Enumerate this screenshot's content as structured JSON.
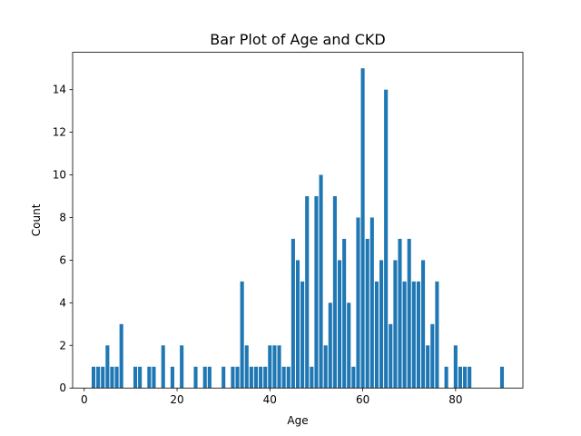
{
  "chart_data": {
    "type": "bar",
    "title": "Bar Plot of Age and CKD",
    "xlabel": "Age",
    "ylabel": "Count",
    "xlim": [
      -2.5,
      94.5
    ],
    "ylim": [
      0,
      15.75
    ],
    "xticks": [
      0,
      20,
      40,
      60,
      80
    ],
    "yticks": [
      0,
      2,
      4,
      6,
      8,
      10,
      12,
      14
    ],
    "grid": false,
    "bar_color": "#1f77b4",
    "x": [
      2,
      3,
      4,
      5,
      6,
      7,
      8,
      11,
      12,
      14,
      15,
      17,
      19,
      21,
      24,
      26,
      27,
      30,
      32,
      33,
      34,
      35,
      36,
      37,
      38,
      39,
      40,
      41,
      42,
      43,
      44,
      45,
      46,
      47,
      48,
      49,
      50,
      51,
      52,
      53,
      54,
      55,
      56,
      57,
      58,
      59,
      60,
      61,
      62,
      63,
      64,
      65,
      66,
      67,
      68,
      69,
      70,
      71,
      72,
      73,
      74,
      75,
      76,
      78,
      80,
      81,
      82,
      83,
      90
    ],
    "values": [
      1,
      1,
      1,
      2,
      1,
      1,
      3,
      1,
      1,
      1,
      1,
      2,
      1,
      2,
      1,
      1,
      1,
      1,
      1,
      1,
      5,
      2,
      1,
      1,
      1,
      1,
      2,
      2,
      2,
      1,
      1,
      7,
      6,
      5,
      9,
      1,
      9,
      10,
      2,
      4,
      9,
      6,
      7,
      4,
      1,
      8,
      15,
      7,
      8,
      5,
      6,
      14,
      3,
      6,
      7,
      5,
      7,
      5,
      5,
      6,
      2,
      3,
      5,
      1,
      2,
      1,
      1,
      1,
      1
    ]
  }
}
